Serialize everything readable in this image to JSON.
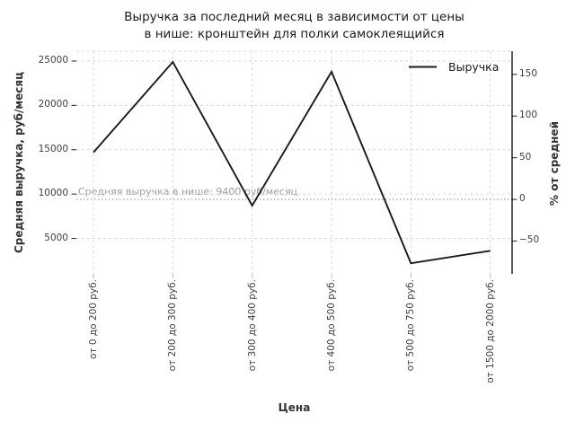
{
  "page": {
    "background": "#ffffff"
  },
  "chart_data": {
    "type": "line",
    "title": "Выручка за последний месяц в зависимости от цены в нише: кронштейн для полки самоклеящийся",
    "title_lines": [
      "Выручка за последний месяц в зависимости от цены",
      "в нише: кронштейн для полки самоклеящийся"
    ],
    "xlabel": "Цена",
    "ylabel_left": "Средняя выручка, руб/месяц",
    "ylabel_right": "% от средней",
    "categories": [
      "от 0 до 200 руб.",
      "от 200 до 300 руб.",
      "от 300 до 400 руб.",
      "от 400 до 500 руб.",
      "от 500 до 750 руб.",
      "от 1500 до 2000 руб."
    ],
    "series": [
      {
        "name": "Выручка",
        "values": [
          14700,
          24900,
          8700,
          23800,
          2200,
          3600
        ],
        "color": "#1a1a1a"
      }
    ],
    "left_axis": {
      "ticks": [
        25000,
        20000,
        15000,
        10000,
        5000
      ],
      "lim": [
        1000,
        26100
      ]
    },
    "right_axis": {
      "ticks": [
        150,
        100,
        50,
        0,
        -50
      ],
      "percent_zero_value": 9400
    },
    "average_line": {
      "value": 9400,
      "label": "Средняя выручка в нише: 9400 руб/месяц",
      "style": "dotted",
      "color": "#aaaaaa"
    },
    "legend": {
      "position": "upper right",
      "entries": [
        "Выручка"
      ]
    },
    "grid": true,
    "colors": {
      "grid": "#d9d9d9",
      "tick_text": "#404040",
      "axis_label_text": "#333333",
      "annotation_text": "#9e9e9e",
      "spine": "#000000"
    }
  }
}
